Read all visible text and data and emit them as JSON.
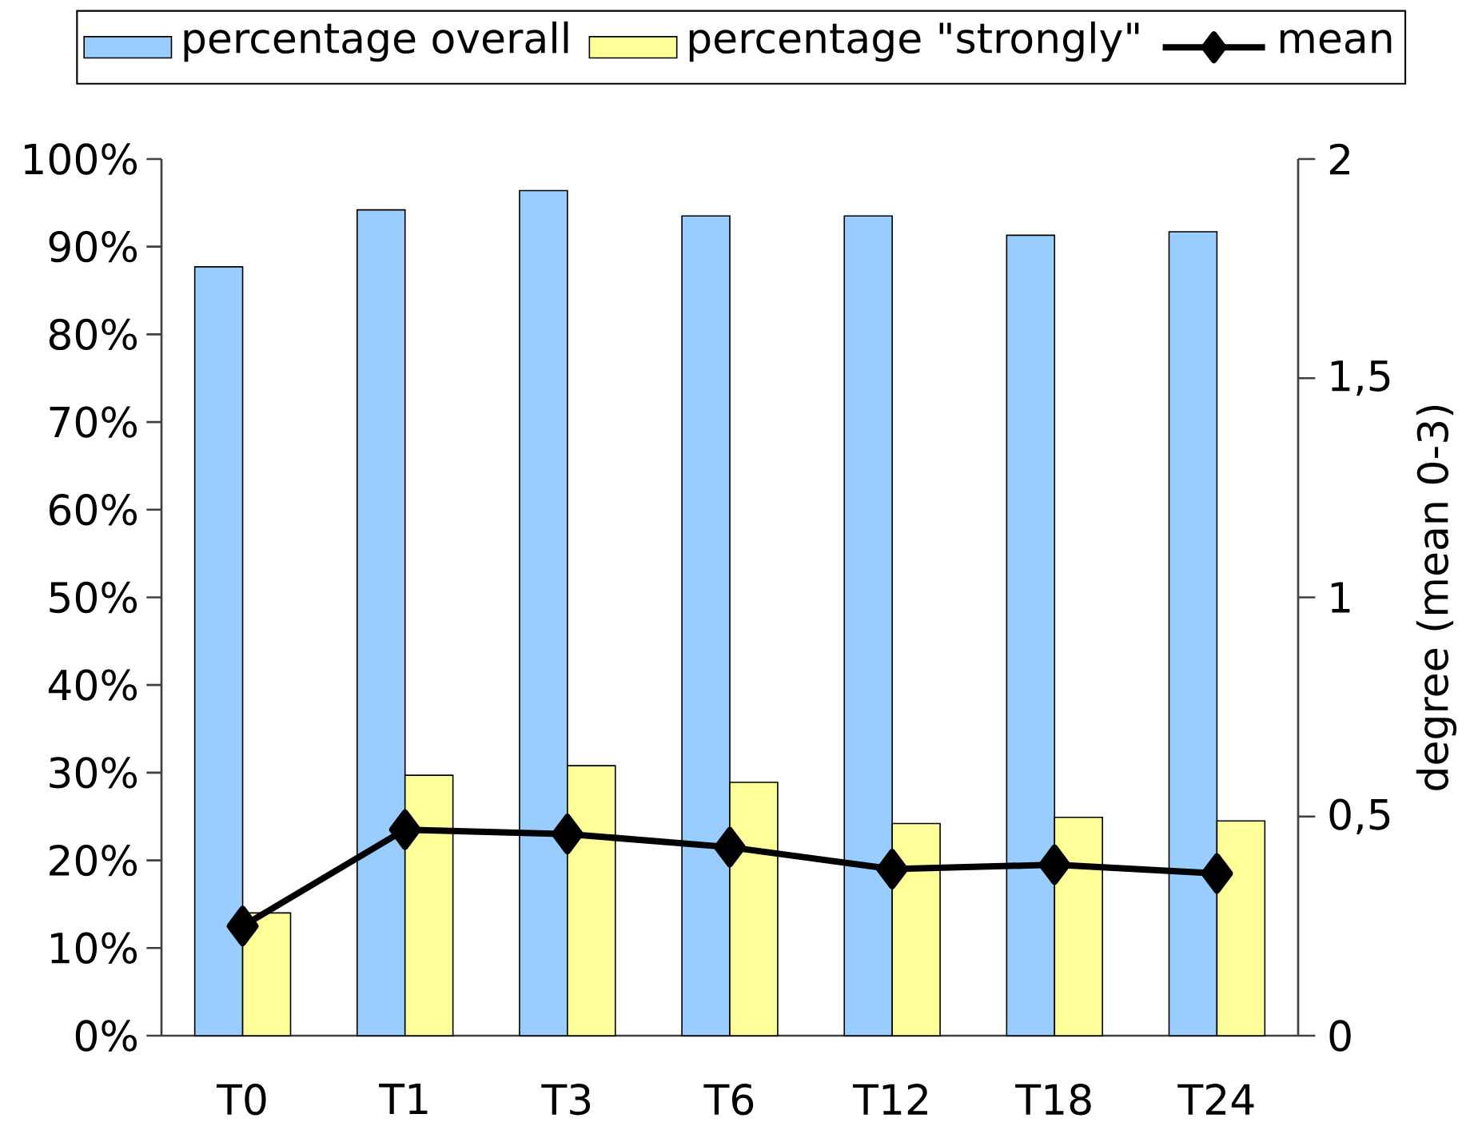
{
  "chart_data": {
    "type": "bar",
    "categories": [
      "T0",
      "T1",
      "T3",
      "T6",
      "T12",
      "T18",
      "T24"
    ],
    "series": [
      {
        "name": "percentage overall",
        "color": "#99ccff",
        "values": [
          87.7,
          94.2,
          96.4,
          93.5,
          93.5,
          91.3,
          91.7
        ]
      },
      {
        "name": "percentage \"strongly\"",
        "color": "#ffff99",
        "values": [
          14.0,
          29.7,
          30.8,
          28.9,
          24.2,
          24.9,
          24.5
        ]
      },
      {
        "name": "mean",
        "type": "line",
        "axis": "y2",
        "color": "#000000",
        "marker": "diamond",
        "values": [
          0.25,
          0.47,
          0.46,
          0.43,
          0.38,
          0.39,
          0.37
        ]
      }
    ],
    "ylim": [
      0,
      100
    ],
    "yticks": [
      {
        "value": 0,
        "label": "0%"
      },
      {
        "value": 10,
        "label": "10%"
      },
      {
        "value": 20,
        "label": "20%"
      },
      {
        "value": 30,
        "label": "30%"
      },
      {
        "value": 40,
        "label": "40%"
      },
      {
        "value": 50,
        "label": "50%"
      },
      {
        "value": 60,
        "label": "60%"
      },
      {
        "value": 70,
        "label": "70%"
      },
      {
        "value": 80,
        "label": "80%"
      },
      {
        "value": 90,
        "label": "90%"
      },
      {
        "value": 100,
        "label": "100%"
      }
    ],
    "y2lim": [
      0,
      2
    ],
    "y2ticks": [
      0,
      {
        "value": 0.5,
        "label": "0,5"
      },
      1,
      {
        "value": 1.5,
        "label": "1,5"
      },
      2
    ],
    "y2label": "degree  (mean 0-3)",
    "legend": "top",
    "grid": false
  }
}
